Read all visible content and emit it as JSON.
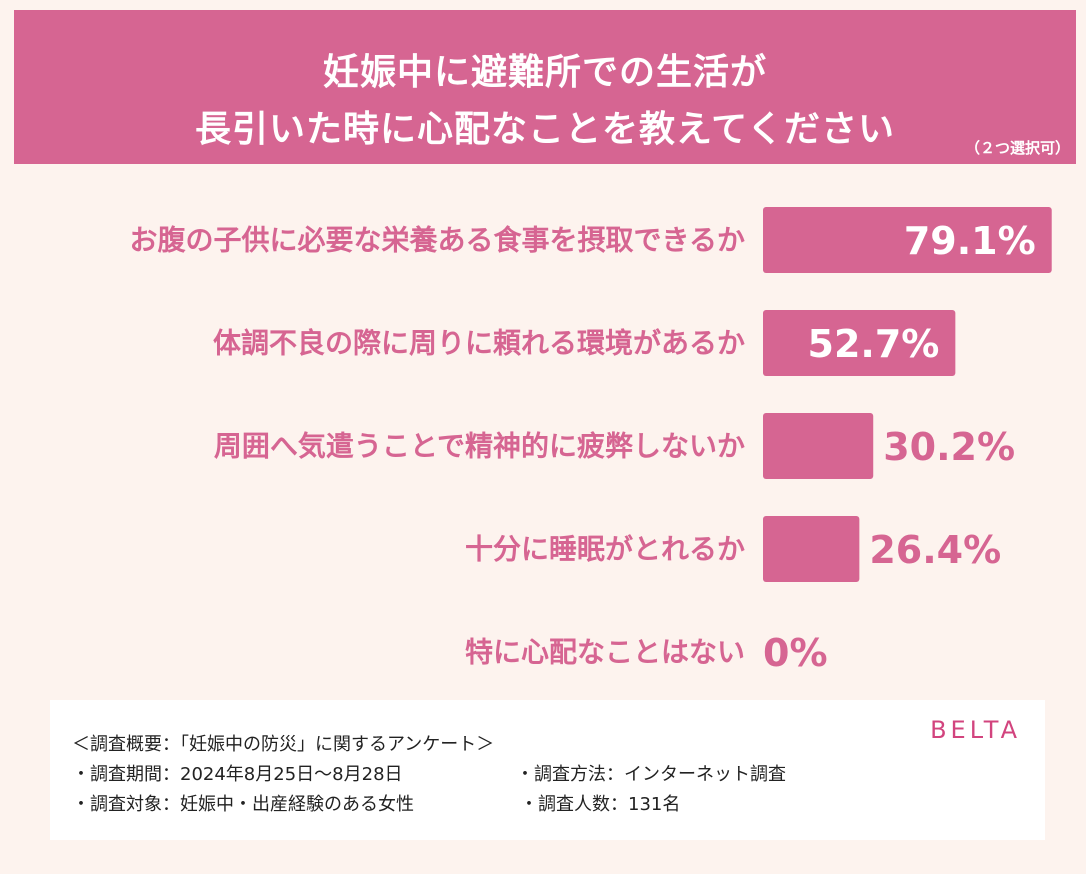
{
  "header": {
    "title_line1": "妊娠中に避難所での生活が",
    "title_line2": "長引いた時に心配なことを教えてください",
    "note": "（２つ選択可）"
  },
  "colors": {
    "accent": "#d66592",
    "background": "#fdf3ee",
    "bar_label_inside": "#ffffff"
  },
  "chart_data": {
    "type": "bar",
    "orientation": "horizontal",
    "categories": [
      "お腹の子供に必要な栄養ある食事を摂取できるか",
      "体調不良の際に周りに頼れる環境があるか",
      "周囲へ気遣うことで精神的に疲弊しないか",
      "十分に睡眠がとれるか",
      "特に心配なことはない"
    ],
    "values": [
      79.1,
      52.7,
      30.2,
      26.4,
      0
    ],
    "value_labels": [
      "79.1%",
      "52.7%",
      "30.2%",
      "26.4%",
      "0%"
    ],
    "xlim": [
      0,
      80
    ],
    "grid": false
  },
  "survey": {
    "line1": "＜調査概要：「妊娠中の防災」に関するアンケート＞",
    "period": "・調査期間：2024年8月25日～8月28日",
    "method": "・調査方法：インターネット調査",
    "target": "・調査対象：妊娠中・出産経験のある女性",
    "count": "・調査人数：131名"
  },
  "brand": {
    "logo_text": "BELTA"
  }
}
